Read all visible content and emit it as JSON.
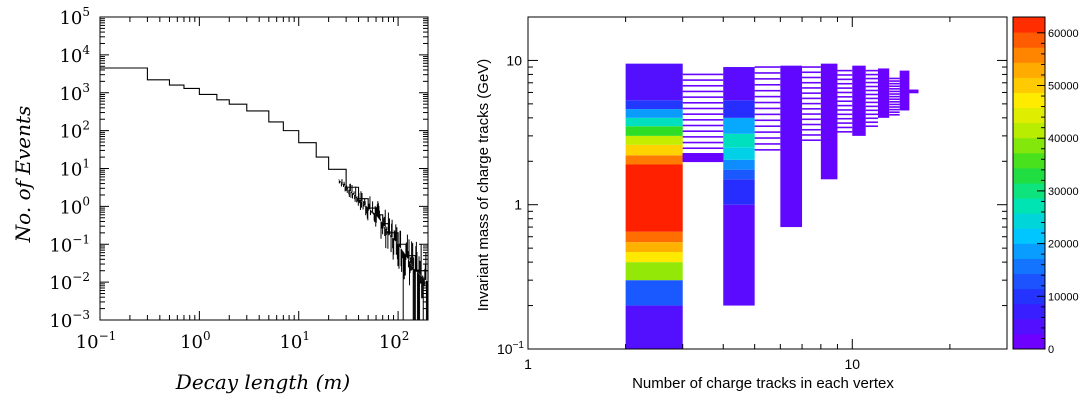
{
  "chart_data": [
    {
      "type": "line",
      "title": "",
      "xlabel": "Decay length (m)",
      "ylabel": "No. of Events",
      "xscale": "log",
      "yscale": "log",
      "xlim": [
        0.1,
        200
      ],
      "ylim": [
        0.001,
        100000
      ],
      "grid": false,
      "x_ticks": [
        {
          "base": "10",
          "exp": "−1",
          "v": 0.1
        },
        {
          "base": "10",
          "exp": "0",
          "v": 1
        },
        {
          "base": "10",
          "exp": "1",
          "v": 10
        },
        {
          "base": "10",
          "exp": "2",
          "v": 100
        }
      ],
      "y_ticks": [
        {
          "base": "10",
          "exp": "−3",
          "v": 0.001
        },
        {
          "base": "10",
          "exp": "−2",
          "v": 0.01
        },
        {
          "base": "10",
          "exp": "−1",
          "v": 0.1
        },
        {
          "base": "10",
          "exp": "0",
          "v": 1
        },
        {
          "base": "10",
          "exp": "1",
          "v": 10
        },
        {
          "base": "10",
          "exp": "2",
          "v": 100
        },
        {
          "base": "10",
          "exp": "3",
          "v": 1000
        },
        {
          "base": "10",
          "exp": "4",
          "v": 10000
        },
        {
          "base": "10",
          "exp": "5",
          "v": 100000
        }
      ],
      "series": [
        {
          "line_color": "#000000",
          "x": [
            0.1,
            0.3,
            0.5,
            0.7,
            1,
            1.5,
            2,
            3,
            5,
            7,
            10,
            15,
            20,
            30,
            40,
            50,
            60,
            70,
            80,
            100,
            120,
            150,
            200
          ],
          "y": [
            4500,
            2200,
            1600,
            1300,
            900,
            650,
            500,
            330,
            170,
            100,
            48,
            20,
            9.5,
            3.2,
            1.6,
            0.9,
            0.6,
            0.35,
            0.2,
            0.1,
            0.05,
            0.02,
            0.01
          ]
        }
      ]
    },
    {
      "type": "heatmap",
      "title": "",
      "xlabel": "Number of charge tracks in each vertex",
      "ylabel": "Invariant mass of charge tracks (GeV)",
      "xscale": "log",
      "yscale": "log",
      "xlim": [
        1,
        30
      ],
      "ylim": [
        0.1,
        20
      ],
      "x_ticks": [
        {
          "label": "1",
          "v": 1
        },
        {
          "label": "10",
          "v": 10
        }
      ],
      "y_ticks": [
        {
          "label": "10",
          "v": 10
        },
        {
          "label": "1",
          "v": 1
        },
        {
          "label": "10",
          "exp": "−1",
          "v": 0.1
        }
      ],
      "colorbar": {
        "min": 0,
        "max": 63000,
        "ticks": [
          "0",
          "10000",
          "20000",
          "30000",
          "40000",
          "50000",
          "60000"
        ],
        "tick_values": [
          0,
          10000,
          20000,
          30000,
          40000,
          50000,
          60000
        ]
      },
      "columns": [
        {
          "x": [
            2,
            3
          ],
          "cells": [
            {
              "y": [
                0.1,
                0.2
              ],
              "z": 3000
            },
            {
              "y": [
                0.2,
                0.3
              ],
              "z": 12000
            },
            {
              "y": [
                0.3,
                0.4
              ],
              "z": 38000
            },
            {
              "y": [
                0.4,
                0.47
              ],
              "z": 46000
            },
            {
              "y": [
                0.47,
                0.55
              ],
              "z": 51000
            },
            {
              "y": [
                0.55,
                0.65
              ],
              "z": 56000
            },
            {
              "y": [
                0.65,
                1.9
              ],
              "z": 61000
            },
            {
              "y": [
                1.9,
                2.2
              ],
              "z": 55000
            },
            {
              "y": [
                2.2,
                2.6
              ],
              "z": 48000
            },
            {
              "y": [
                2.6,
                3.0
              ],
              "z": 41000
            },
            {
              "y": [
                3.0,
                3.5
              ],
              "z": 33000
            },
            {
              "y": [
                3.5,
                4.0
              ],
              "z": 25000
            },
            {
              "y": [
                4.0,
                4.6
              ],
              "z": 17000
            },
            {
              "y": [
                4.6,
                5.3
              ],
              "z": 9000
            },
            {
              "y": [
                5.3,
                9.5
              ],
              "z": 3000
            }
          ]
        },
        {
          "x": [
            4,
            5
          ],
          "cells": [
            {
              "y": [
                0.2,
                1.0
              ],
              "z": 2000
            },
            {
              "y": [
                1.0,
                1.5
              ],
              "z": 8000
            },
            {
              "y": [
                1.5,
                1.75
              ],
              "z": 12000
            },
            {
              "y": [
                1.75,
                2.05
              ],
              "z": 16000
            },
            {
              "y": [
                2.05,
                2.5
              ],
              "z": 22000
            },
            {
              "y": [
                2.5,
                3.1
              ],
              "z": 25000
            },
            {
              "y": [
                3.1,
                4.0
              ],
              "z": 18000
            },
            {
              "y": [
                4.0,
                5.3
              ],
              "z": 8000
            },
            {
              "y": [
                5.3,
                9.0
              ],
              "z": 2000
            }
          ]
        },
        {
          "x": [
            6,
            7
          ],
          "cells": [
            {
              "y": [
                0.7,
                9.2
              ],
              "z": 1500
            }
          ]
        },
        {
          "x": [
            8,
            9
          ],
          "cells": [
            {
              "y": [
                1.5,
                9.5
              ],
              "z": 1000
            }
          ]
        },
        {
          "x": [
            10,
            11
          ],
          "cells": [
            {
              "y": [
                3.0,
                9.2
              ],
              "z": 800
            }
          ]
        },
        {
          "x": [
            12,
            13
          ],
          "cells": [
            {
              "y": [
                4.0,
                8.8
              ],
              "z": 500
            }
          ]
        },
        {
          "x": [
            14,
            15
          ],
          "cells": [
            {
              "y": [
                4.5,
                8.5
              ],
              "z": 300
            }
          ]
        }
      ],
      "strips": [
        {
          "x": [
            3,
            4
          ],
          "y": [
            2.0,
            2.25
          ],
          "z": 800
        },
        {
          "x": [
            3,
            4
          ],
          "y": [
            2.25,
            8.0
          ],
          "z": 600
        },
        {
          "x": [
            5,
            6
          ],
          "y": [
            2.4,
            9.0
          ],
          "z": 900
        },
        {
          "x": [
            7,
            8
          ],
          "y": [
            2.8,
            9.0
          ],
          "z": 700
        },
        {
          "x": [
            9,
            10
          ],
          "y": [
            3.2,
            8.5
          ],
          "z": 500
        },
        {
          "x": [
            11,
            12
          ],
          "y": [
            3.5,
            8.5
          ],
          "z": 400
        },
        {
          "x": [
            13,
            14
          ],
          "y": [
            4.2,
            7.5
          ],
          "z": 200
        },
        {
          "x": [
            15,
            16
          ],
          "y": [
            6.0,
            6.2
          ],
          "z": 100
        }
      ]
    }
  ]
}
